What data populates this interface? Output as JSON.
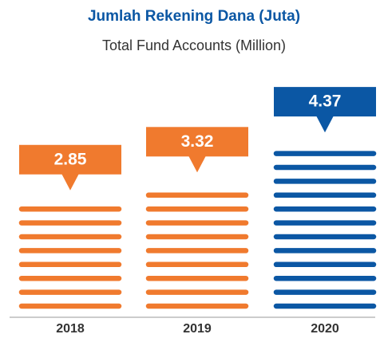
{
  "chart_data": {
    "type": "bar",
    "title": "Jumlah Rekening Dana (Juta)",
    "subtitle": "Total Fund Accounts (Million)",
    "categories": [
      "2018",
      "2019",
      "2020"
    ],
    "values": [
      2.85,
      3.32,
      4.37
    ],
    "colors": [
      "#f07a2e",
      "#f07a2e",
      "#0b57a4"
    ]
  }
}
